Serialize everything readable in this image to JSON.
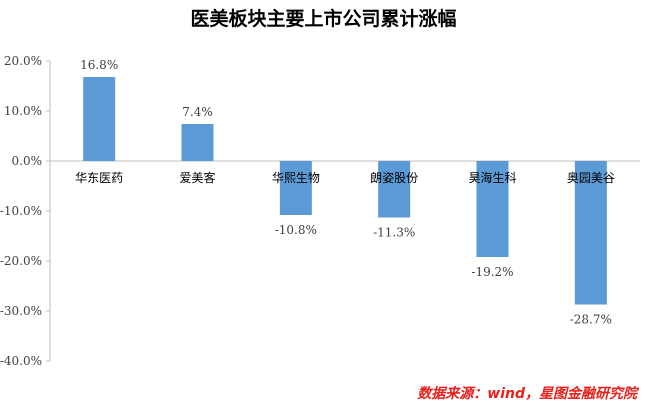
{
  "title": "医美板块主要上市公司累计涨幅",
  "source": "数据来源：wind，星图金融研究院",
  "colors": {
    "bar": "#5b9bd5",
    "axis": "#bfbfbf",
    "source": "#e8211d"
  },
  "chart_data": {
    "type": "bar",
    "categories": [
      "华东医药",
      "爱美客",
      "华熙生物",
      "朗姿股份",
      "昊海生科",
      "奥园美谷"
    ],
    "values": [
      16.8,
      7.4,
      -10.8,
      -11.3,
      -19.2,
      -28.7
    ],
    "data_labels": [
      "16.8%",
      "7.4%",
      "-10.8%",
      "-11.3%",
      "-19.2%",
      "-28.7%"
    ],
    "ylim": [
      -40,
      20
    ],
    "yticks": [
      20,
      10,
      0,
      -10,
      -20,
      -30,
      -40
    ],
    "ytick_labels": [
      "20.0%",
      "10.0%",
      "0.0%",
      "-10.0%",
      "-20.0%",
      "-30.0%",
      "-40.0%"
    ],
    "grid": false,
    "legend": "none"
  }
}
